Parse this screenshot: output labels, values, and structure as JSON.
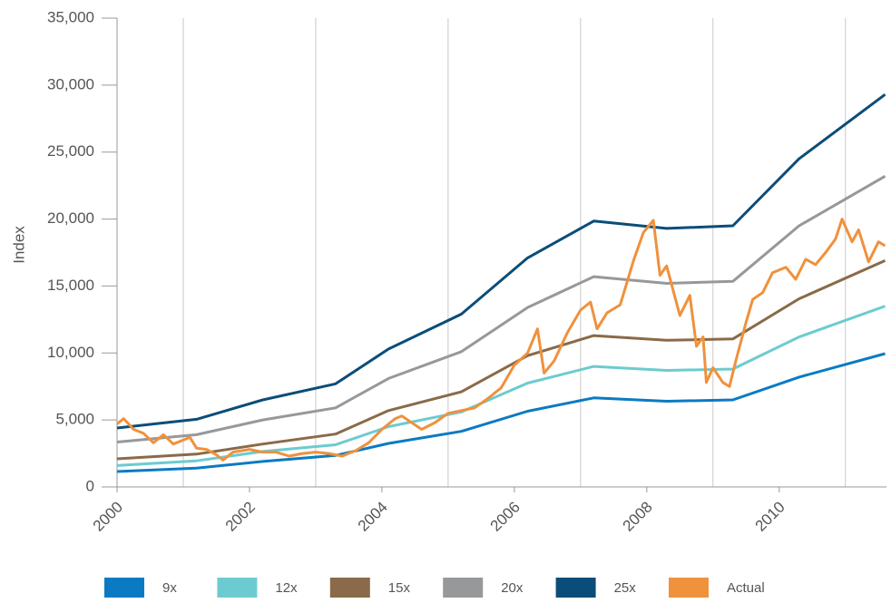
{
  "chart_data": {
    "type": "line",
    "y_label": "Index",
    "xlim": [
      2000,
      2011.62
    ],
    "xticks": [
      2000,
      2002,
      2004,
      2006,
      2008,
      2010
    ],
    "x_grid_lines": [
      2001,
      2003,
      2005,
      2007,
      2009,
      2011
    ],
    "ylim": [
      0,
      35000
    ],
    "yticks": [
      0,
      {
        "value": 5000,
        "label": "5,000"
      },
      {
        "value": 10000,
        "label": "10,000"
      },
      {
        "value": 15000,
        "label": "15,000"
      },
      {
        "value": 20000,
        "label": "20,000"
      },
      {
        "value": 25000,
        "label": "25,000"
      },
      {
        "value": 30000,
        "label": "30,000"
      },
      {
        "value": 35000,
        "label": "35,000"
      }
    ],
    "series": [
      {
        "name": "9x",
        "color": "#0a7bc2",
        "x": [
          2000.0,
          2001.2,
          2002.2,
          2003.3,
          2004.1,
          2005.2,
          2006.2,
          2007.2,
          2008.3,
          2009.3,
          2010.3,
          2011.6
        ],
        "values": [
          1150,
          1400,
          1900,
          2350,
          3250,
          4150,
          5650,
          6650,
          6400,
          6500,
          8200,
          9950
        ]
      },
      {
        "name": "12x",
        "color": "#6ccbd0",
        "x": [
          2000.0,
          2001.2,
          2002.2,
          2003.3,
          2004.1,
          2005.2,
          2006.2,
          2007.2,
          2008.3,
          2009.3,
          2010.3,
          2011.6
        ],
        "values": [
          1600,
          1950,
          2650,
          3150,
          4500,
          5600,
          7750,
          9000,
          8700,
          8800,
          11200,
          13500
        ]
      },
      {
        "name": "15x",
        "color": "#8a6a48",
        "x": [
          2000.0,
          2001.2,
          2002.2,
          2003.3,
          2004.1,
          2005.2,
          2006.2,
          2007.2,
          2008.3,
          2009.3,
          2010.3,
          2011.6
        ],
        "values": [
          2100,
          2450,
          3200,
          3950,
          5700,
          7100,
          9800,
          11300,
          10950,
          11050,
          14050,
          16900
        ]
      },
      {
        "name": "20x",
        "color": "#97989a",
        "x": [
          2000.0,
          2001.2,
          2002.2,
          2003.3,
          2004.1,
          2005.2,
          2006.2,
          2007.2,
          2008.3,
          2009.3,
          2010.3,
          2011.6
        ],
        "values": [
          3350,
          3900,
          5000,
          5900,
          8100,
          10100,
          13400,
          15700,
          15200,
          15350,
          19500,
          23200
        ]
      },
      {
        "name": "25x",
        "color": "#0b4d79",
        "x": [
          2000.0,
          2001.2,
          2002.2,
          2003.3,
          2004.1,
          2005.2,
          2006.2,
          2007.2,
          2008.3,
          2009.3,
          2010.3,
          2011.6
        ],
        "values": [
          4400,
          5050,
          6500,
          7700,
          10300,
          12900,
          17100,
          19850,
          19300,
          19500,
          24500,
          29300
        ]
      },
      {
        "name": "Actual",
        "color": "#f0913c",
        "x": [
          2000.0,
          2000.1,
          2000.25,
          2000.4,
          2000.55,
          2000.7,
          2000.85,
          2001.0,
          2001.1,
          2001.2,
          2001.35,
          2001.5,
          2001.6,
          2001.75,
          2002.0,
          2002.2,
          2002.4,
          2002.6,
          2002.8,
          2003.0,
          2003.2,
          2003.4,
          2003.6,
          2003.8,
          2004.0,
          2004.2,
          2004.3,
          2004.45,
          2004.6,
          2004.8,
          2005.0,
          2005.2,
          2005.4,
          2005.6,
          2005.8,
          2006.0,
          2006.2,
          2006.35,
          2006.45,
          2006.6,
          2006.8,
          2007.0,
          2007.15,
          2007.25,
          2007.4,
          2007.6,
          2007.8,
          2007.95,
          2008.1,
          2008.2,
          2008.3,
          2008.5,
          2008.65,
          2008.75,
          2008.85,
          2008.9,
          2009.0,
          2009.15,
          2009.25,
          2009.35,
          2009.5,
          2009.6,
          2009.75,
          2009.9,
          2010.1,
          2010.25,
          2010.4,
          2010.55,
          2010.7,
          2010.85,
          2010.95,
          2011.1,
          2011.2,
          2011.35,
          2011.5,
          2011.6
        ],
        "values": [
          4700,
          5100,
          4300,
          4000,
          3300,
          3900,
          3200,
          3500,
          3700,
          2900,
          2800,
          2400,
          2000,
          2600,
          2800,
          2600,
          2600,
          2300,
          2500,
          2600,
          2500,
          2300,
          2700,
          3300,
          4300,
          5100,
          5300,
          4800,
          4300,
          4800,
          5500,
          5700,
          5900,
          6600,
          7400,
          9100,
          10000,
          11800,
          8500,
          9400,
          11500,
          13200,
          13800,
          11800,
          13000,
          13600,
          16900,
          19000,
          19900,
          15800,
          16500,
          12800,
          14300,
          10500,
          11200,
          7800,
          8900,
          7800,
          7500,
          9500,
          12300,
          14000,
          14500,
          16000,
          16400,
          15500,
          17000,
          16600,
          17500,
          18500,
          20000,
          18300,
          19200,
          16800,
          18300,
          18000
        ]
      }
    ]
  }
}
